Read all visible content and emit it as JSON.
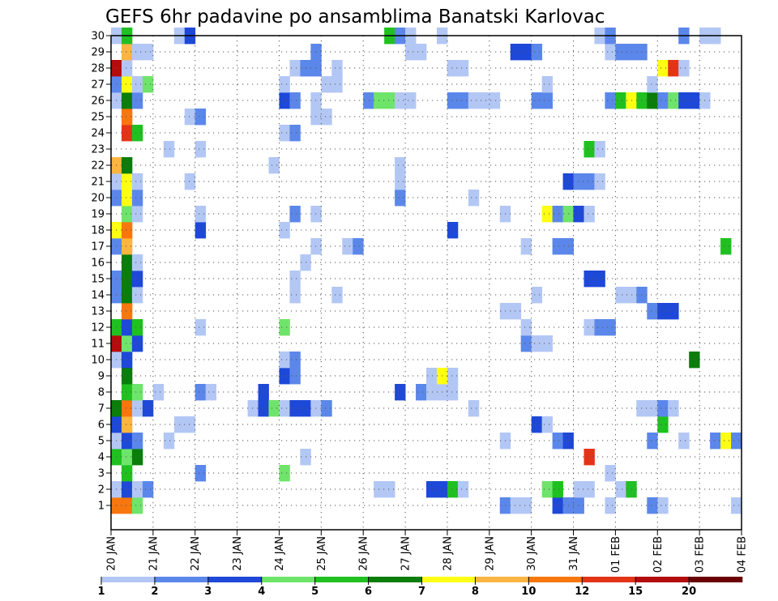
{
  "chart_data": {
    "type": "heatmap",
    "title": "GEFS 6hr padavine po ansamblima Banatski Karlovac",
    "xlabel": "",
    "ylabel": "",
    "x_tick_labels": [
      "20 JAN",
      "21 JAN",
      "22 JAN",
      "23 JAN",
      "24 JAN",
      "25 JAN",
      "26 JAN",
      "27 JAN",
      "28 JAN",
      "29 JAN",
      "30 JAN",
      "31 JAN",
      "01 FEB",
      "02 FEB",
      "03 FEB",
      "04 FEB"
    ],
    "y_tick_labels": [
      "1",
      "2",
      "3",
      "4",
      "5",
      "6",
      "7",
      "8",
      "9",
      "10",
      "11",
      "12",
      "13",
      "14",
      "15",
      "16",
      "17",
      "18",
      "19",
      "20",
      "21",
      "22",
      "23",
      "24",
      "25",
      "26",
      "27",
      "28",
      "29",
      "30"
    ],
    "time_steps_per_day": 4,
    "time_steps": 60,
    "grid": true,
    "colorbar": {
      "bounds": [
        1,
        2,
        3,
        4,
        5,
        6,
        7,
        8,
        10,
        12,
        15,
        20
      ],
      "labels": [
        "1",
        "2",
        "3",
        "4",
        "5",
        "6",
        "7",
        "8",
        "10",
        "12",
        "15",
        "20"
      ],
      "colors": [
        "#b3c7f5",
        "#5b87ea",
        "#1e48d8",
        "#6fe46a",
        "#20c020",
        "#0a7d0a",
        "#ffff14",
        "#fbb540",
        "#f8760e",
        "#e33417",
        "#b40c0c",
        "#6b0000"
      ]
    },
    "cells_note": "[member, time_step (0 = 20 JAN 00z), level_index into colorbar.colors]",
    "cells": [
      [
        1,
        0,
        8
      ],
      [
        1,
        1,
        8
      ],
      [
        1,
        2,
        3
      ],
      [
        1,
        37,
        1
      ],
      [
        1,
        38,
        0
      ],
      [
        1,
        39,
        0
      ],
      [
        1,
        42,
        2
      ],
      [
        1,
        43,
        1
      ],
      [
        1,
        44,
        1
      ],
      [
        1,
        47,
        0
      ],
      [
        1,
        51,
        1
      ],
      [
        1,
        52,
        0
      ],
      [
        1,
        59,
        0
      ],
      [
        2,
        0,
        0
      ],
      [
        2,
        1,
        2
      ],
      [
        2,
        2,
        0
      ],
      [
        2,
        3,
        1
      ],
      [
        2,
        25,
        0
      ],
      [
        2,
        26,
        0
      ],
      [
        2,
        30,
        2
      ],
      [
        2,
        31,
        2
      ],
      [
        2,
        32,
        4
      ],
      [
        2,
        33,
        0
      ],
      [
        2,
        41,
        3
      ],
      [
        2,
        42,
        4
      ],
      [
        2,
        44,
        0
      ],
      [
        2,
        45,
        0
      ],
      [
        2,
        48,
        0
      ],
      [
        2,
        49,
        4
      ],
      [
        3,
        1,
        4
      ],
      [
        3,
        8,
        1
      ],
      [
        3,
        16,
        3
      ],
      [
        3,
        47,
        0
      ],
      [
        4,
        0,
        4
      ],
      [
        4,
        1,
        3
      ],
      [
        4,
        2,
        5
      ],
      [
        4,
        18,
        0
      ],
      [
        4,
        45,
        9
      ],
      [
        5,
        0,
        0
      ],
      [
        5,
        1,
        2
      ],
      [
        5,
        2,
        1
      ],
      [
        5,
        5,
        0
      ],
      [
        5,
        37,
        0
      ],
      [
        5,
        42,
        1
      ],
      [
        5,
        43,
        2
      ],
      [
        5,
        51,
        1
      ],
      [
        5,
        54,
        0
      ],
      [
        5,
        57,
        1
      ],
      [
        5,
        58,
        6
      ],
      [
        5,
        59,
        1
      ],
      [
        6,
        0,
        2
      ],
      [
        6,
        1,
        7
      ],
      [
        6,
        6,
        0
      ],
      [
        6,
        7,
        0
      ],
      [
        6,
        40,
        2
      ],
      [
        6,
        41,
        0
      ],
      [
        6,
        52,
        4
      ],
      [
        7,
        0,
        5
      ],
      [
        7,
        1,
        8
      ],
      [
        7,
        2,
        0
      ],
      [
        7,
        3,
        2
      ],
      [
        7,
        13,
        0
      ],
      [
        7,
        14,
        2
      ],
      [
        7,
        15,
        3
      ],
      [
        7,
        16,
        0
      ],
      [
        7,
        17,
        2
      ],
      [
        7,
        18,
        2
      ],
      [
        7,
        19,
        0
      ],
      [
        7,
        20,
        1
      ],
      [
        7,
        34,
        0
      ],
      [
        7,
        50,
        0
      ],
      [
        7,
        51,
        0
      ],
      [
        7,
        52,
        1
      ],
      [
        7,
        53,
        0
      ],
      [
        8,
        1,
        4
      ],
      [
        8,
        2,
        3
      ],
      [
        8,
        4,
        0
      ],
      [
        8,
        8,
        1
      ],
      [
        8,
        9,
        0
      ],
      [
        8,
        14,
        2
      ],
      [
        8,
        27,
        2
      ],
      [
        8,
        29,
        1
      ],
      [
        8,
        30,
        0
      ],
      [
        8,
        31,
        0
      ],
      [
        8,
        32,
        0
      ],
      [
        9,
        1,
        5
      ],
      [
        9,
        16,
        2
      ],
      [
        9,
        17,
        1
      ],
      [
        9,
        30,
        0
      ],
      [
        9,
        31,
        6
      ],
      [
        9,
        32,
        0
      ],
      [
        10,
        0,
        0
      ],
      [
        10,
        1,
        2
      ],
      [
        10,
        16,
        0
      ],
      [
        10,
        17,
        1
      ],
      [
        10,
        55,
        5
      ],
      [
        11,
        0,
        10
      ],
      [
        11,
        1,
        3
      ],
      [
        11,
        2,
        2
      ],
      [
        11,
        39,
        1
      ],
      [
        11,
        40,
        0
      ],
      [
        11,
        41,
        0
      ],
      [
        12,
        0,
        4
      ],
      [
        12,
        1,
        2
      ],
      [
        12,
        2,
        4
      ],
      [
        12,
        8,
        0
      ],
      [
        12,
        16,
        3
      ],
      [
        12,
        39,
        0
      ],
      [
        12,
        45,
        0
      ],
      [
        12,
        46,
        1
      ],
      [
        12,
        47,
        1
      ],
      [
        13,
        1,
        8
      ],
      [
        13,
        37,
        0
      ],
      [
        13,
        38,
        0
      ],
      [
        13,
        51,
        1
      ],
      [
        13,
        52,
        2
      ],
      [
        13,
        53,
        2
      ],
      [
        14,
        0,
        1
      ],
      [
        14,
        1,
        5
      ],
      [
        14,
        2,
        0
      ],
      [
        14,
        17,
        0
      ],
      [
        14,
        21,
        0
      ],
      [
        14,
        40,
        0
      ],
      [
        14,
        48,
        0
      ],
      [
        14,
        49,
        0
      ],
      [
        14,
        50,
        1
      ],
      [
        15,
        0,
        1
      ],
      [
        15,
        1,
        5
      ],
      [
        15,
        2,
        2
      ],
      [
        15,
        17,
        0
      ],
      [
        15,
        45,
        2
      ],
      [
        15,
        46,
        2
      ],
      [
        16,
        1,
        5
      ],
      [
        16,
        2,
        0
      ],
      [
        16,
        18,
        0
      ],
      [
        17,
        0,
        1
      ],
      [
        17,
        1,
        7
      ],
      [
        17,
        19,
        0
      ],
      [
        17,
        22,
        0
      ],
      [
        17,
        23,
        1
      ],
      [
        17,
        39,
        0
      ],
      [
        17,
        42,
        1
      ],
      [
        17,
        43,
        1
      ],
      [
        17,
        58,
        4
      ],
      [
        18,
        0,
        6
      ],
      [
        18,
        1,
        8
      ],
      [
        18,
        8,
        2
      ],
      [
        18,
        16,
        0
      ],
      [
        18,
        32,
        2
      ],
      [
        19,
        1,
        3
      ],
      [
        19,
        2,
        0
      ],
      [
        19,
        8,
        0
      ],
      [
        19,
        17,
        1
      ],
      [
        19,
        19,
        0
      ],
      [
        19,
        37,
        0
      ],
      [
        19,
        41,
        6
      ],
      [
        19,
        42,
        1
      ],
      [
        19,
        43,
        3
      ],
      [
        19,
        44,
        2
      ],
      [
        19,
        45,
        0
      ],
      [
        20,
        0,
        1
      ],
      [
        20,
        1,
        6
      ],
      [
        20,
        2,
        1
      ],
      [
        20,
        27,
        1
      ],
      [
        20,
        34,
        0
      ],
      [
        21,
        0,
        0
      ],
      [
        21,
        1,
        6
      ],
      [
        21,
        2,
        0
      ],
      [
        21,
        7,
        0
      ],
      [
        21,
        27,
        0
      ],
      [
        21,
        43,
        2
      ],
      [
        21,
        44,
        1
      ],
      [
        21,
        45,
        1
      ],
      [
        21,
        46,
        0
      ],
      [
        22,
        0,
        7
      ],
      [
        22,
        1,
        5
      ],
      [
        22,
        15,
        0
      ],
      [
        22,
        27,
        0
      ],
      [
        23,
        5,
        0
      ],
      [
        23,
        8,
        0
      ],
      [
        23,
        45,
        4
      ],
      [
        23,
        46,
        0
      ],
      [
        24,
        1,
        9
      ],
      [
        24,
        2,
        4
      ],
      [
        24,
        16,
        0
      ],
      [
        24,
        17,
        1
      ],
      [
        25,
        1,
        8
      ],
      [
        25,
        7,
        0
      ],
      [
        25,
        8,
        1
      ],
      [
        25,
        19,
        0
      ],
      [
        25,
        20,
        0
      ],
      [
        26,
        0,
        0
      ],
      [
        26,
        1,
        5
      ],
      [
        26,
        2,
        1
      ],
      [
        26,
        16,
        2
      ],
      [
        26,
        17,
        1
      ],
      [
        26,
        19,
        0
      ],
      [
        26,
        24,
        1
      ],
      [
        26,
        25,
        3
      ],
      [
        26,
        26,
        3
      ],
      [
        26,
        27,
        0
      ],
      [
        26,
        28,
        0
      ],
      [
        26,
        32,
        1
      ],
      [
        26,
        33,
        1
      ],
      [
        26,
        34,
        0
      ],
      [
        26,
        35,
        0
      ],
      [
        26,
        36,
        0
      ],
      [
        26,
        40,
        1
      ],
      [
        26,
        41,
        1
      ],
      [
        26,
        47,
        1
      ],
      [
        26,
        48,
        4
      ],
      [
        26,
        49,
        6
      ],
      [
        26,
        50,
        4
      ],
      [
        26,
        51,
        5
      ],
      [
        26,
        52,
        1
      ],
      [
        26,
        53,
        3
      ],
      [
        26,
        54,
        2
      ],
      [
        26,
        55,
        2
      ],
      [
        26,
        56,
        0
      ],
      [
        27,
        0,
        1
      ],
      [
        27,
        1,
        6
      ],
      [
        27,
        2,
        0
      ],
      [
        27,
        3,
        3
      ],
      [
        27,
        16,
        0
      ],
      [
        27,
        20,
        0
      ],
      [
        27,
        21,
        0
      ],
      [
        27,
        41,
        0
      ],
      [
        27,
        51,
        0
      ],
      [
        28,
        0,
        10
      ],
      [
        28,
        1,
        0
      ],
      [
        28,
        17,
        0
      ],
      [
        28,
        18,
        1
      ],
      [
        28,
        19,
        1
      ],
      [
        28,
        21,
        0
      ],
      [
        28,
        32,
        0
      ],
      [
        28,
        33,
        0
      ],
      [
        28,
        52,
        6
      ],
      [
        28,
        53,
        9
      ],
      [
        28,
        54,
        0
      ],
      [
        29,
        1,
        7
      ],
      [
        29,
        2,
        0
      ],
      [
        29,
        3,
        0
      ],
      [
        29,
        19,
        1
      ],
      [
        29,
        28,
        0
      ],
      [
        29,
        29,
        0
      ],
      [
        29,
        38,
        2
      ],
      [
        29,
        39,
        2
      ],
      [
        29,
        40,
        1
      ],
      [
        29,
        47,
        0
      ],
      [
        29,
        48,
        1
      ],
      [
        29,
        49,
        1
      ],
      [
        29,
        50,
        1
      ],
      [
        30,
        0,
        0
      ],
      [
        30,
        1,
        4
      ],
      [
        30,
        6,
        0
      ],
      [
        30,
        7,
        2
      ],
      [
        30,
        26,
        4
      ],
      [
        30,
        27,
        1
      ],
      [
        30,
        28,
        0
      ],
      [
        30,
        31,
        0
      ],
      [
        30,
        46,
        0
      ],
      [
        30,
        47,
        1
      ],
      [
        30,
        54,
        1
      ],
      [
        30,
        56,
        0
      ],
      [
        30,
        57,
        0
      ]
    ]
  }
}
